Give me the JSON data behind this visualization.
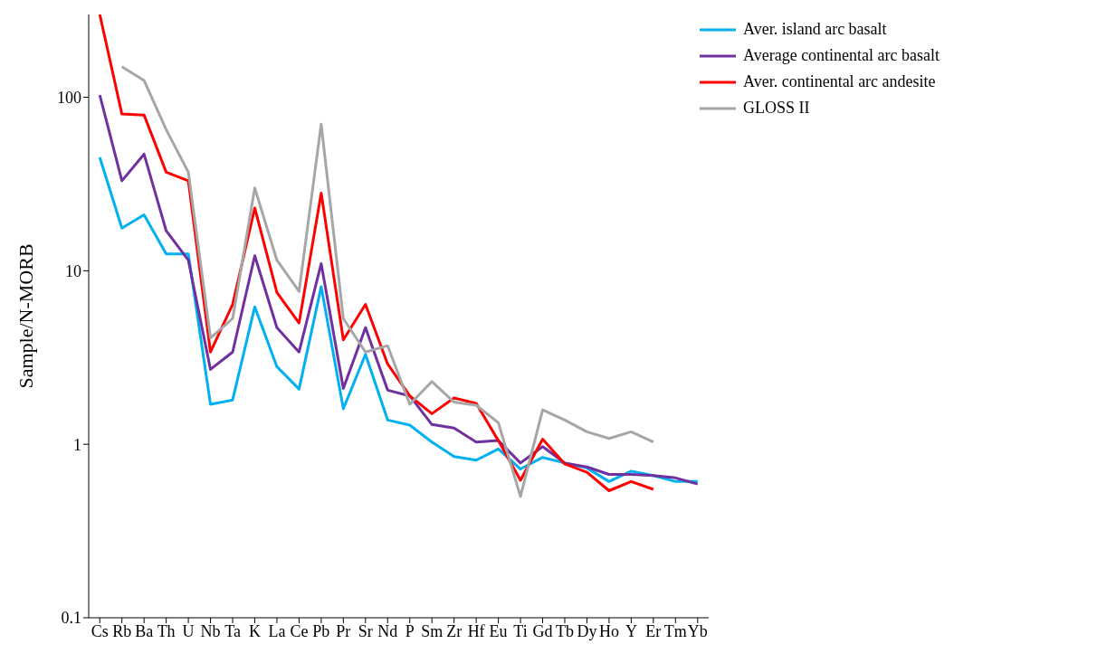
{
  "chart_data": {
    "type": "line",
    "ylabel": "Sample/N-MORB",
    "categories": [
      "Cs",
      "Rb",
      "Ba",
      "Th",
      "U",
      "Nb",
      "Ta",
      "K",
      "La",
      "Ce",
      "Pb",
      "Pr",
      "Sr",
      "Nd",
      "P",
      "Sm",
      "Zr",
      "Hf",
      "Eu",
      "Ti",
      "Gd",
      "Tb",
      "Dy",
      "Ho",
      "Y",
      "Er",
      "Tm",
      "Yb"
    ],
    "series": [
      {
        "name": "Aver. island arc basalt",
        "color": "#00b0f0",
        "values": [
          45,
          17.6,
          21,
          12.5,
          12.5,
          1.7,
          1.8,
          6.2,
          2.8,
          2.08,
          8.1,
          1.6,
          3.3,
          1.38,
          1.29,
          1.03,
          0.85,
          0.81,
          0.94,
          0.72,
          0.84,
          0.78,
          0.73,
          0.61,
          0.7,
          0.66,
          0.61,
          0.61
        ]
      },
      {
        "name": "Average continental arc basalt",
        "color": "#7030a0",
        "values": [
          103,
          33,
          47,
          17,
          11.5,
          2.7,
          3.4,
          12.2,
          4.7,
          3.4,
          11,
          2.1,
          4.7,
          2.05,
          1.9,
          1.3,
          1.24,
          1.03,
          1.05,
          0.78,
          0.97,
          0.78,
          0.74,
          0.67,
          0.67,
          0.66,
          0.64,
          0.59
        ]
      },
      {
        "name": "Aver. continental arc andesite",
        "color": "#ff0000",
        "values": [
          300,
          80,
          79,
          37,
          33,
          3.4,
          6.4,
          23,
          7.5,
          5,
          28,
          4,
          6.4,
          2.9,
          1.9,
          1.5,
          1.85,
          1.72,
          1.05,
          0.62,
          1.07,
          0.77,
          0.69,
          0.54,
          0.61,
          0.55,
          null,
          null
        ]
      },
      {
        "name": "GLOSS II",
        "color": "#a6a6a6",
        "values": [
          null,
          150,
          125,
          65,
          37,
          4.1,
          5.3,
          30,
          11.5,
          7.6,
          70,
          5.3,
          3.4,
          3.7,
          1.7,
          2.3,
          1.75,
          1.68,
          1.33,
          0.5,
          1.58,
          1.38,
          1.18,
          1.08,
          1.18,
          1.03,
          null,
          null
        ]
      }
    ],
    "log": "y",
    "ylim": [
      0.1,
      300
    ],
    "yticks": [
      0.1,
      1,
      10,
      100
    ],
    "legend": "top right",
    "marker": "none",
    "line_style": "solid"
  }
}
